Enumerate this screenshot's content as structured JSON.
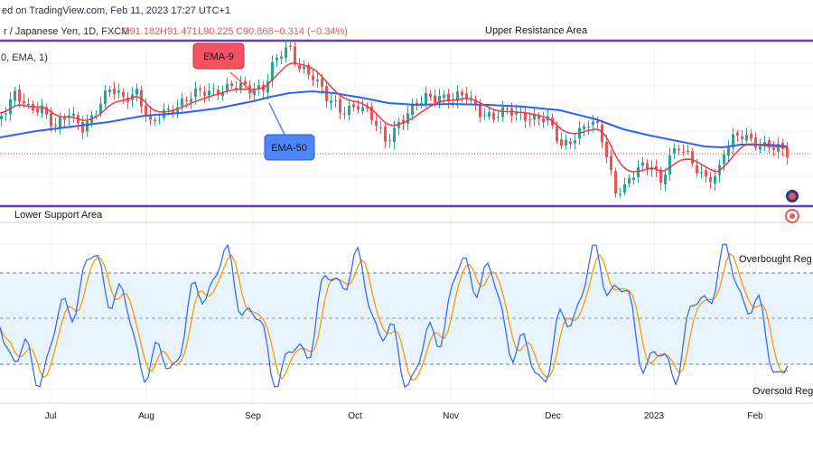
{
  "header": {
    "line1": "ed on TradingView.com, Feb 11, 2023 17:27 UTC+1",
    "line2_prefix": "r / Japanese Yen, 1D, FXCM",
    "open": "O91.182",
    "high": "H91.471",
    "low": "L90.225",
    "close": "C90.868",
    "change": "−0.314 (−0.34%)",
    "indicator": "0, EMA, 1)"
  },
  "colors": {
    "up_candle": "#26a69a",
    "down_candle": "#ef5350",
    "ema9": "#f23645",
    "ema50": "#2962ff",
    "zone_line": "#673ab7",
    "stoch_k": "#2962ff",
    "stoch_d": "#ff9800",
    "stoch_band": "#e3f2fd",
    "callout_red": "#f7525f",
    "callout_blue": "#4f86f7"
  },
  "annotations": {
    "upper": "Upper Resistance Area",
    "lower": "Lower Support Area",
    "ema9": "EMA-9",
    "ema50": "EMA-50",
    "overbought": "Overbought Reg",
    "oversold": "Oversold Reg"
  },
  "chart_data": {
    "type": "candlestick",
    "x_labels": [
      "Jul",
      "Aug",
      "Sep",
      "Oct",
      "Nov",
      "Dec",
      "2023",
      "Feb"
    ],
    "series": [
      {
        "name": "EMA-9"
      },
      {
        "name": "EMA-50"
      }
    ],
    "stochastic_levels": [
      80,
      50,
      20
    ],
    "grid": true
  }
}
